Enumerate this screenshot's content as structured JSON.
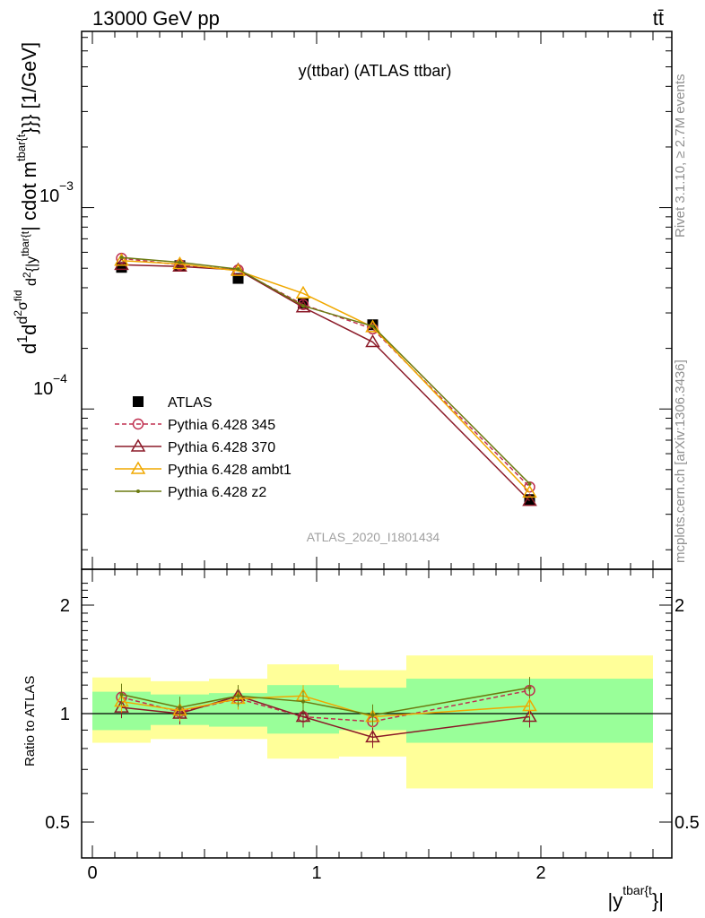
{
  "header": {
    "energy_label": "13000 GeV pp",
    "process_label": "tt̄"
  },
  "main": {
    "title": "y(ttbar) (ATLAS ttbar)",
    "watermark": "ATLAS_2020_I1801434",
    "ylabel": "d1/σdd²σ^fid/d²{|y^tbar{t}|cdot m^tbar{t}}}} [1/GeV]",
    "ylabel_parts": {
      "d1": "d",
      "one": "1",
      "sigma": "σ",
      "d2": "d",
      "d2num": "d",
      "sq": "2",
      "sigma2": "σ",
      "fid": "fid",
      "dden": "d",
      "sq2": "2",
      "brace": "{|y",
      "tbar": "tbar{t",
      "cdot": "| cdot m",
      "tbar2": "tbar{t",
      "close": "}}} [1/GeV]"
    },
    "ytick_upper": "10",
    "ytick_upper_exp": "−3",
    "ytick_lower": "10",
    "ytick_lower_exp": "−4"
  },
  "side": {
    "rivet_label": "Rivet 3.1.10, ≥ 2.7M events",
    "mcplots_label": "mcplots.cern.ch [arXiv:1306.3436]"
  },
  "ratio": {
    "ylabel": "Ratio to ATLAS",
    "ticks": [
      "2",
      "1",
      "0.5"
    ]
  },
  "xaxis": {
    "label_main": "|y",
    "label_sup": "tbar{t",
    "label_end": "}|",
    "ticks": [
      "0",
      "1",
      "2"
    ]
  },
  "legend": [
    {
      "label": "ATLAS",
      "color": "#000000",
      "marker": "square",
      "dash": ""
    },
    {
      "label": "Pythia 6.428 345",
      "color": "#c03050",
      "marker": "circle",
      "dash": "5,3"
    },
    {
      "label": "Pythia 6.428 370",
      "color": "#8b1a28",
      "marker": "triangle",
      "dash": ""
    },
    {
      "label": "Pythia 6.428 ambt1",
      "color": "#f0a800",
      "marker": "triangle",
      "dash": ""
    },
    {
      "label": "Pythia 6.428 z2",
      "color": "#6b7a10",
      "marker": "dot",
      "dash": ""
    }
  ],
  "chart_data": {
    "type": "line",
    "x": [
      0.13,
      0.39,
      0.65,
      0.94,
      1.25,
      1.95
    ],
    "bin_edges": [
      0.0,
      0.26,
      0.52,
      0.78,
      1.1,
      1.4,
      2.5
    ],
    "xlim": [
      -0.05,
      2.55
    ],
    "ylim": [
      1.6e-05,
      0.0075
    ],
    "yscale": "log",
    "ratio_ylim": [
      0.4,
      2.4
    ],
    "series": [
      {
        "name": "ATLAS",
        "values": [
          0.000505,
          0.000515,
          0.000445,
          0.000335,
          0.000262,
          3.55e-05
        ],
        "ratio_band_inner": [
          [
            0.9,
            1.15
          ],
          [
            0.93,
            1.13
          ],
          [
            0.92,
            1.14
          ],
          [
            0.88,
            1.2
          ],
          [
            0.9,
            1.18
          ],
          [
            0.83,
            1.25
          ]
        ],
        "ratio_band_outer": [
          [
            0.83,
            1.26
          ],
          [
            0.85,
            1.23
          ],
          [
            0.85,
            1.25
          ],
          [
            0.75,
            1.37
          ],
          [
            0.76,
            1.32
          ],
          [
            0.62,
            1.45
          ]
        ]
      },
      {
        "name": "Pythia 6.428 345",
        "values": [
          0.00056,
          0.00052,
          0.00049,
          0.00033,
          0.00025,
          4.1e-05
        ],
        "ratio": [
          1.11,
          1.01,
          1.1,
          0.98,
          0.95,
          1.16
        ]
      },
      {
        "name": "Pythia 6.428 370",
        "values": [
          0.00052,
          0.00051,
          0.00049,
          0.00032,
          0.000215,
          3.5e-05
        ],
        "ratio": [
          1.04,
          1.0,
          1.12,
          0.98,
          0.86,
          0.98
        ]
      },
      {
        "name": "Pythia 6.428 ambt1",
        "values": [
          0.000545,
          0.000525,
          0.000485,
          0.000375,
          0.000255,
          3.85e-05
        ],
        "ratio": [
          1.08,
          1.02,
          1.1,
          1.12,
          0.98,
          1.05
        ]
      },
      {
        "name": "Pythia 6.428 z2",
        "values": [
          0.000565,
          0.000535,
          0.000495,
          0.000325,
          0.000258,
          4.25e-05
        ],
        "ratio": [
          1.13,
          1.04,
          1.12,
          1.08,
          0.99,
          1.18
        ]
      }
    ]
  }
}
